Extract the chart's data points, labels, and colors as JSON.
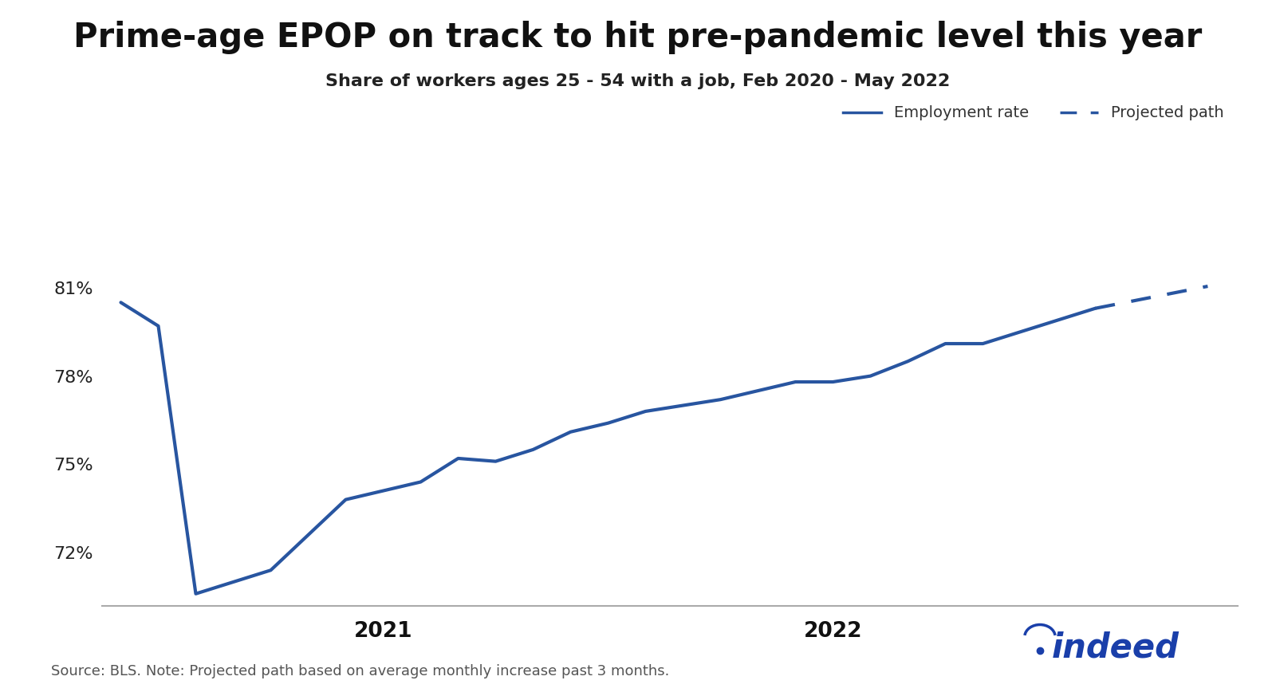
{
  "title": "Prime-age EPOP on track to hit pre-pandemic level this year",
  "subtitle": "Share of workers ages 25 - 54 with a job, Feb 2020 - May 2022",
  "source_note": "Source: BLS. Note: Projected path based on average monthly increase past 3 months.",
  "line_color": "#2855a0",
  "background_color": "#ffffff",
  "ylim": [
    70.2,
    82.5
  ],
  "yticks": [
    72,
    75,
    78,
    81
  ],
  "title_fontsize": 30,
  "subtitle_fontsize": 16,
  "legend_fontsize": 14,
  "tick_fontsize": 16,
  "source_fontsize": 13,
  "line_width": 3.0,
  "solid_data": {
    "months": [
      0,
      1,
      2,
      3,
      4,
      5,
      6,
      7,
      8,
      9,
      10,
      11,
      12,
      13,
      14,
      15,
      16,
      17,
      18,
      19,
      20,
      21,
      22,
      23,
      24,
      25,
      26
    ],
    "values": [
      80.5,
      79.7,
      70.6,
      71.0,
      71.4,
      72.6,
      73.8,
      74.1,
      74.4,
      75.2,
      75.1,
      75.5,
      76.1,
      76.4,
      76.8,
      77.0,
      77.2,
      77.5,
      77.8,
      77.8,
      78.0,
      78.5,
      79.1,
      79.1,
      79.5,
      79.9,
      80.3
    ]
  },
  "projected_data": {
    "months": [
      26,
      27,
      28,
      29
    ],
    "values": [
      80.3,
      80.55,
      80.8,
      81.05
    ]
  },
  "x_tick_positions": [
    7,
    19
  ],
  "x_tick_labels": [
    "2021",
    "2022"
  ],
  "legend_labels": [
    "Employment rate",
    "Projected path"
  ],
  "indeed_color": "#1a3faa"
}
